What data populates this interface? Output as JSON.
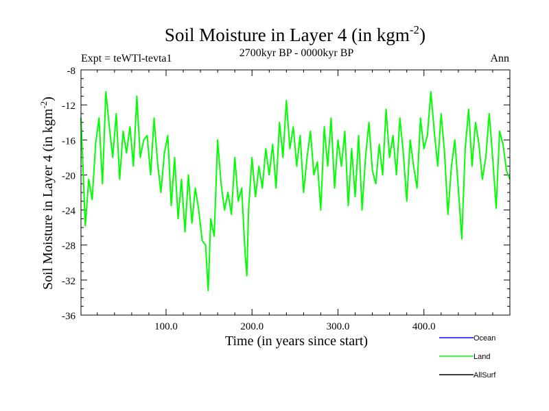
{
  "chart_data": {
    "type": "line",
    "title": "Soil Moisture in Layer 4 (in kgm",
    "title_superscript": "-2",
    "title_close": ")",
    "subtitle": "2700kyr BP - 0000kyr BP",
    "left_label": "Expt = teWTl-tevta1",
    "right_label": "Ann",
    "xlabel": "Time (in years since start)",
    "ylabel": "Soil Moisture in Layer 4 (in kgm",
    "ylabel_superscript": "-2",
    "ylabel_close": ")",
    "xlim": [
      1,
      500
    ],
    "ylim": [
      -36,
      -8
    ],
    "x_ticks": [
      100,
      200,
      300,
      400
    ],
    "x_tick_labels": [
      "100.0",
      "200.0",
      "300.0",
      "400.0"
    ],
    "y_ticks": [
      -36,
      -32,
      -28,
      -24,
      -20,
      -16,
      -12,
      -8
    ],
    "y_tick_labels": [
      "-36",
      "-32",
      "-28",
      "-24",
      "-20",
      "-16",
      "-12",
      "-8"
    ],
    "legend": [
      {
        "name": "Ocean",
        "color": "#0000ff"
      },
      {
        "name": "Land",
        "color": "#00ff00"
      },
      {
        "name": "AllSurf",
        "color": "#000000"
      }
    ],
    "series": [
      {
        "name": "Land",
        "color": "#00ff00",
        "x": [
          1,
          6,
          10,
          14,
          18,
          22,
          26,
          30,
          34,
          38,
          42,
          46,
          50,
          54,
          58,
          62,
          66,
          70,
          74,
          78,
          82,
          86,
          90,
          94,
          98,
          102,
          106,
          110,
          114,
          118,
          122,
          126,
          130,
          134,
          138,
          142,
          146,
          149,
          152,
          156,
          160,
          164,
          168,
          172,
          176,
          180,
          184,
          188,
          192,
          194,
          196,
          200,
          204,
          208,
          212,
          216,
          220,
          224,
          228,
          232,
          236,
          240,
          244,
          248,
          252,
          256,
          260,
          264,
          268,
          272,
          276,
          280,
          284,
          288,
          292,
          296,
          300,
          304,
          308,
          312,
          316,
          320,
          324,
          328,
          332,
          336,
          340,
          344,
          348,
          352,
          356,
          360,
          364,
          368,
          372,
          376,
          380,
          384,
          388,
          392,
          396,
          400,
          404,
          408,
          412,
          416,
          420,
          424,
          428,
          432,
          436,
          440,
          444,
          448,
          452,
          456,
          460,
          464,
          468,
          472,
          476,
          480,
          484,
          488,
          492,
          496,
          500
        ],
        "values": [
          -13.5,
          -25.8,
          -20.5,
          -22.8,
          -16.5,
          -13.5,
          -21,
          -10.5,
          -14.5,
          -18,
          -13,
          -20.5,
          -15,
          -17.5,
          -14.5,
          -19,
          -11,
          -18,
          -16,
          -15.5,
          -20,
          -13.5,
          -18.5,
          -22,
          -17.5,
          -15.5,
          -23.5,
          -18,
          -25,
          -20.5,
          -26.5,
          -20,
          -25.5,
          -21.5,
          -24,
          -27.5,
          -28,
          -33.2,
          -25,
          -27,
          -16,
          -21,
          -24,
          -22,
          -24.5,
          -18,
          -23,
          -21.5,
          -29,
          -31.5,
          -24,
          -18,
          -22.5,
          -19,
          -21.5,
          -17,
          -20,
          -16.5,
          -21.5,
          -14,
          -18,
          -11.5,
          -17,
          -14.5,
          -19,
          -15.5,
          -22,
          -18,
          -15,
          -20,
          -18.5,
          -24,
          -14.5,
          -19,
          -13.5,
          -21.5,
          -16,
          -19,
          -15,
          -23.5,
          -17,
          -22.5,
          -15.5,
          -24,
          -18,
          -14,
          -19.5,
          -21,
          -16.5,
          -20,
          -12.5,
          -18,
          -15.5,
          -20,
          -13.5,
          -17.5,
          -23,
          -16,
          -19,
          -21.5,
          -13.5,
          -17,
          -15.5,
          -10.5,
          -15,
          -19,
          -13,
          -17.5,
          -24.5,
          -19,
          -16,
          -21.5,
          -27.3,
          -17,
          -12.5,
          -19,
          -14,
          -16.5,
          -20.5,
          -18,
          -13,
          -18,
          -23.8,
          -15,
          -16.5,
          -19.5,
          -20.5
        ]
      }
    ]
  }
}
